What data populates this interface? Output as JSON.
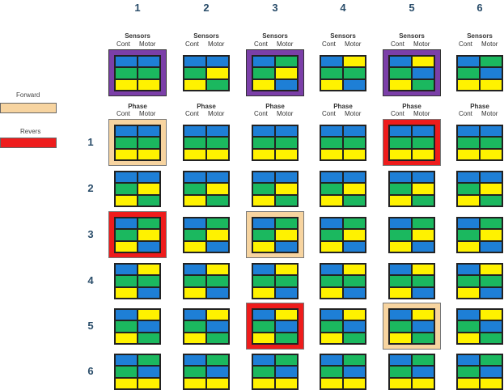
{
  "colors": {
    "B": "#1e7fd6",
    "G": "#1bb85f",
    "Y": "#fff200",
    "purple": "#7b3fa8",
    "peach": "#f7d4a0",
    "red": "#ee1c1c"
  },
  "legend": {
    "forward_label": "Forward",
    "revers_label": "Revers"
  },
  "column_numbers": [
    "1",
    "2",
    "3",
    "4",
    "5",
    "6"
  ],
  "row_numbers": [
    "1",
    "2",
    "3",
    "4",
    "5",
    "6"
  ],
  "sensors_header": {
    "title": "Sensors",
    "left": "Cont",
    "right": "Motor"
  },
  "phase_header": {
    "title": "Phase",
    "left": "Cont",
    "right": "Motor"
  },
  "sensor_frames": [
    "purple",
    null,
    "purple",
    null,
    "purple",
    null
  ],
  "sensor_grids": [
    [
      "BB",
      "GG",
      "YY"
    ],
    [
      "BB",
      "GY",
      "YG"
    ],
    [
      "BG",
      "GY",
      "YB"
    ],
    [
      "BY",
      "GG",
      "YB"
    ],
    [
      "BY",
      "GB",
      "YG"
    ],
    [
      "BG",
      "GB",
      "YY"
    ]
  ],
  "row_patterns": [
    [
      "BB",
      "GG",
      "YY"
    ],
    [
      "BB",
      "GY",
      "YG"
    ],
    [
      "BG",
      "GY",
      "YB"
    ],
    [
      "BY",
      "GG",
      "YB"
    ],
    [
      "BY",
      "GB",
      "YG"
    ],
    [
      "BG",
      "GB",
      "YY"
    ]
  ],
  "frames": [
    [
      "peach",
      null,
      null,
      null,
      "red",
      null
    ],
    [
      null,
      null,
      null,
      null,
      null,
      null
    ],
    [
      "red",
      null,
      "peach",
      null,
      null,
      null
    ],
    [
      null,
      null,
      null,
      null,
      null,
      null
    ],
    [
      null,
      null,
      "red",
      null,
      "peach",
      null
    ],
    [
      null,
      null,
      null,
      null,
      null,
      null
    ]
  ]
}
